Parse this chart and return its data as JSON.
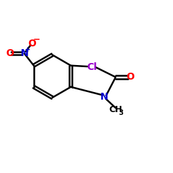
{
  "bg_color": "#ffffff",
  "atom_colors": {
    "C": "#000000",
    "N": "#0000cd",
    "O": "#ff0000",
    "Cl": "#9900cc",
    "H": "#000000"
  },
  "bond_color": "#000000",
  "bond_width": 1.8,
  "figsize": [
    2.5,
    2.5
  ],
  "dpi": 100,
  "xlim": [
    0,
    10
  ],
  "ylim": [
    0,
    10
  ]
}
